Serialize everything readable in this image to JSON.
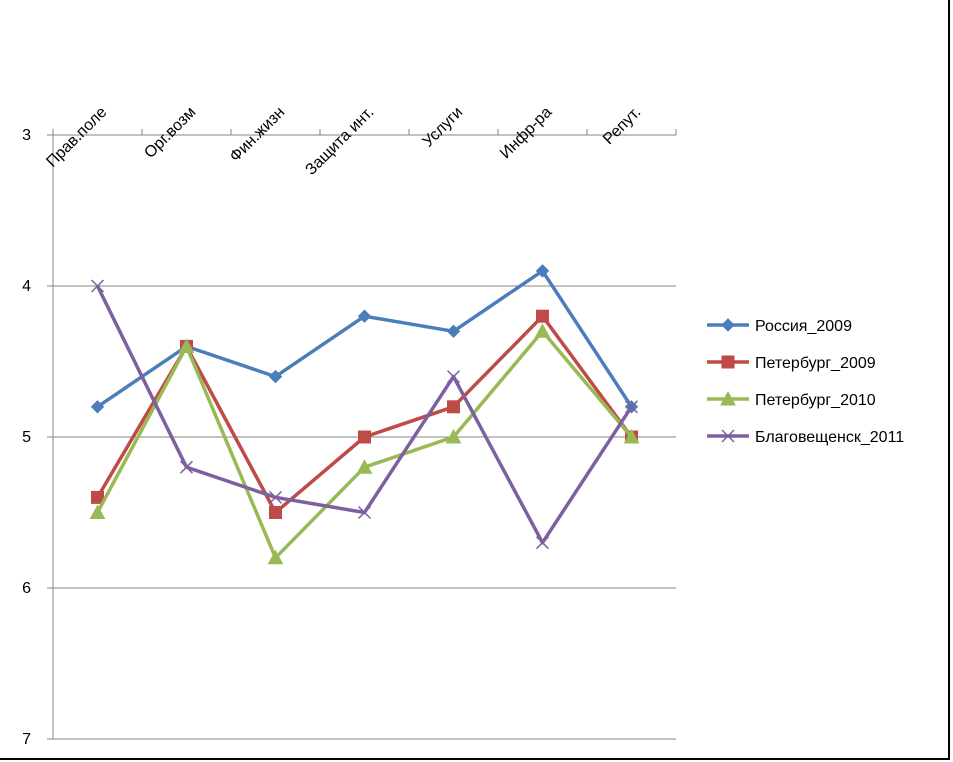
{
  "chart_data": {
    "type": "line",
    "categories": [
      "Прав.поле",
      "Орг.возм",
      "Фин.жизн",
      "Защита инт.",
      "Услуги",
      "Инфр-ра",
      "Репут."
    ],
    "y_ticks": [
      "3",
      "4",
      "5",
      "6",
      "7"
    ],
    "ylim": [
      3,
      7
    ],
    "y_reversed": true,
    "grid": true,
    "legend_position": "right",
    "series": [
      {
        "name": "Россия_2009",
        "color": "#4a7ebb",
        "marker": "diamond",
        "values": [
          4.8,
          4.4,
          4.6,
          4.2,
          4.3,
          3.9,
          4.8
        ]
      },
      {
        "name": "Петербург_2009",
        "color": "#be4b48",
        "marker": "square",
        "values": [
          5.4,
          4.4,
          5.5,
          5.0,
          4.8,
          4.2,
          5.0
        ]
      },
      {
        "name": "Петербург_2010",
        "color": "#98b954",
        "marker": "triangle",
        "values": [
          5.5,
          4.4,
          5.8,
          5.2,
          5.0,
          4.3,
          5.0
        ]
      },
      {
        "name": "Благовещенск_2011",
        "color": "#7d60a0",
        "marker": "x",
        "values": [
          4.0,
          5.2,
          5.4,
          5.5,
          4.6,
          5.7,
          4.8
        ]
      }
    ]
  }
}
